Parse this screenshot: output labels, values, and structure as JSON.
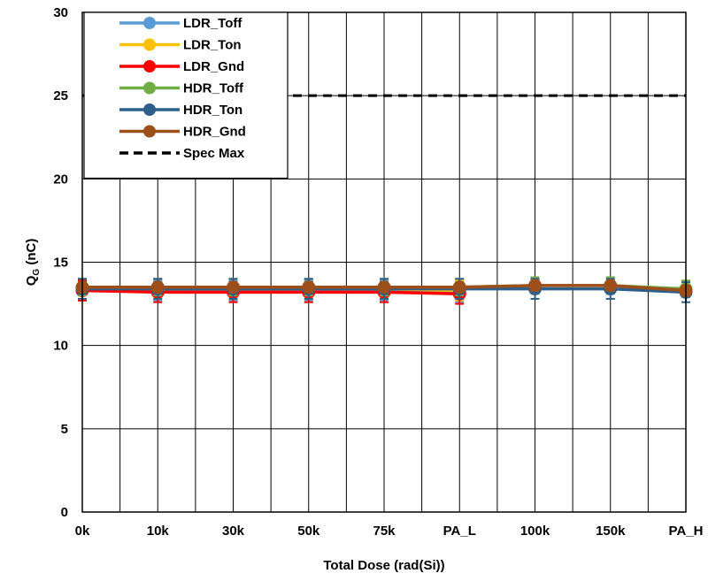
{
  "chart_data": {
    "type": "line",
    "xlabel": "Total Dose (rad(Si))",
    "ylabel_main": "Q",
    "ylabel_sub": "G",
    "ylabel_unit": " (nC)",
    "ylim": [
      0,
      30
    ],
    "yticks": [
      0,
      5,
      10,
      15,
      20,
      25,
      30
    ],
    "categories": [
      "0k",
      "10k",
      "30k",
      "50k",
      "75k",
      "PA_L",
      "100k",
      "150k",
      "PA_H"
    ],
    "grid": true,
    "legend_position": "top-left",
    "series": [
      {
        "name": "LDR_Toff",
        "color": "#5b9bd5",
        "values": [
          13.3,
          13.3,
          13.3,
          13.3,
          13.3,
          13.2,
          null,
          null,
          null
        ],
        "err": [
          0.6,
          0.6,
          0.6,
          0.6,
          0.6,
          0.6,
          null,
          null,
          null
        ]
      },
      {
        "name": "LDR_Ton",
        "color": "#ffc000",
        "values": [
          13.4,
          13.4,
          13.4,
          13.4,
          13.4,
          13.3,
          null,
          null,
          null
        ],
        "err": [
          0.6,
          0.6,
          0.6,
          0.6,
          0.6,
          0.6,
          null,
          null,
          null
        ]
      },
      {
        "name": "LDR_Gnd",
        "color": "#ff0000",
        "values": [
          13.3,
          13.2,
          13.2,
          13.2,
          13.2,
          13.1,
          null,
          null,
          null
        ],
        "err": [
          0.6,
          0.6,
          0.6,
          0.6,
          0.6,
          0.6,
          null,
          null,
          null
        ]
      },
      {
        "name": "HDR_Toff",
        "color": "#70ad47",
        "values": [
          13.5,
          13.5,
          13.5,
          13.5,
          13.5,
          13.5,
          13.6,
          13.6,
          13.4
        ],
        "err": [
          0.5,
          0.5,
          0.5,
          0.5,
          0.5,
          0.5,
          0.5,
          0.5,
          0.5
        ]
      },
      {
        "name": "HDR_Ton",
        "color": "#2e5f8a",
        "values": [
          13.4,
          13.4,
          13.4,
          13.4,
          13.4,
          13.4,
          13.4,
          13.4,
          13.2
        ],
        "err": [
          0.6,
          0.6,
          0.6,
          0.6,
          0.6,
          0.6,
          0.6,
          0.6,
          0.6
        ]
      },
      {
        "name": "HDR_Gnd",
        "color": "#9c4f1a",
        "values": [
          13.5,
          13.5,
          13.5,
          13.5,
          13.5,
          13.5,
          13.6,
          13.6,
          13.3
        ],
        "err": [
          0.3,
          0.3,
          0.3,
          0.3,
          0.3,
          0.3,
          0.3,
          0.3,
          0.3
        ]
      }
    ],
    "spec": {
      "name": "Spec Max",
      "value": 25,
      "color": "#000000"
    }
  }
}
